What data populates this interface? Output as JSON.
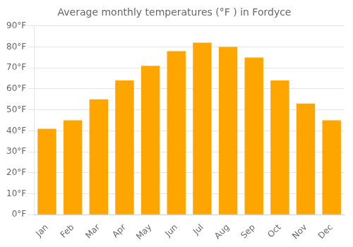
{
  "chart_data": {
    "type": "bar",
    "title": "Average monthly temperatures (°F ) in Fordyce",
    "categories": [
      "Jan",
      "Feb",
      "Mar",
      "Apr",
      "May",
      "Jun",
      "Jul",
      "Aug",
      "Sep",
      "Oct",
      "Nov",
      "Dec"
    ],
    "values": [
      41,
      45,
      55,
      64,
      71,
      78,
      82,
      80,
      75,
      64,
      53,
      45
    ],
    "color": "#FFA500",
    "ylim": [
      0,
      90
    ],
    "yticks": [
      {
        "value": 0,
        "label": "0°F"
      },
      {
        "value": 10,
        "label": "10°F"
      },
      {
        "value": 20,
        "label": "20°F"
      },
      {
        "value": 30,
        "label": "30°F"
      },
      {
        "value": 40,
        "label": "40°F"
      },
      {
        "value": 50,
        "label": "50°F"
      },
      {
        "value": 60,
        "label": "60°F"
      },
      {
        "value": 70,
        "label": "70°F"
      },
      {
        "value": 80,
        "label": "80°F"
      },
      {
        "value": 90,
        "label": "90°F"
      }
    ],
    "grid": true
  }
}
